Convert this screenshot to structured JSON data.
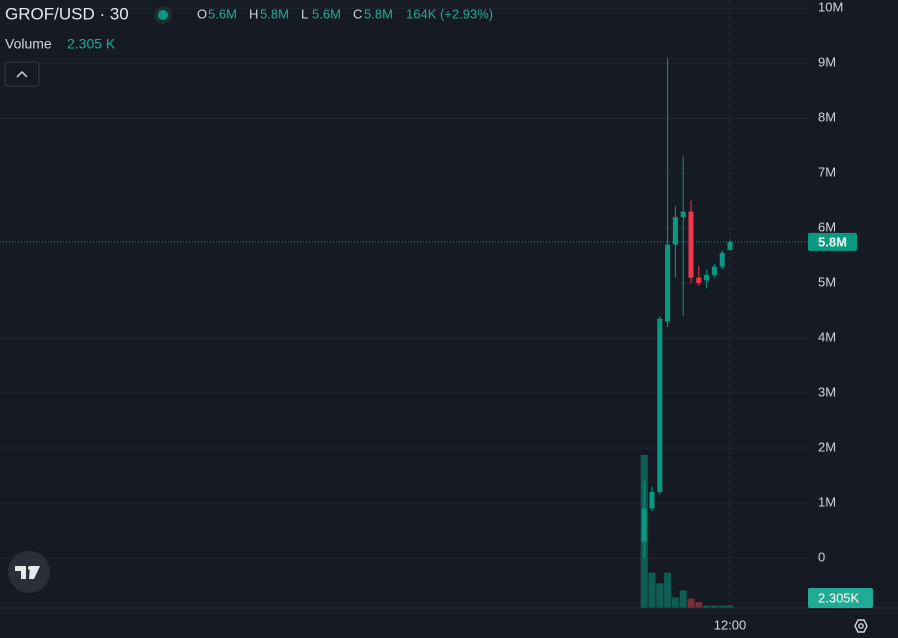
{
  "chart_data": {
    "type": "candlestick",
    "legend": {
      "symbol": "GROF/USD · 30",
      "ohlc": [
        {
          "key": "O",
          "value": "5.6M"
        },
        {
          "key": "H",
          "value": "5.8M"
        },
        {
          "key": "L",
          "value": "5.6M"
        },
        {
          "key": "C",
          "value": "5.8M"
        }
      ],
      "change": "164K (+2.93%)",
      "volume_title": "Volume",
      "volume_value": "2.305 K"
    },
    "categories": [
      null,
      null,
      null,
      null,
      null,
      null,
      null,
      null,
      null,
      null,
      null,
      "12:00"
    ],
    "open": [
      0.3,
      0.9,
      1.2,
      4.3,
      5.7,
      6.2,
      6.3,
      5.1,
      5.05,
      5.15,
      5.3,
      5.6
    ],
    "high": [
      1.4,
      1.3,
      4.4,
      9.1,
      6.4,
      7.3,
      6.5,
      5.3,
      5.25,
      5.35,
      5.6,
      5.8
    ],
    "low": [
      0.0,
      0.85,
      1.15,
      4.2,
      5.1,
      4.4,
      5.0,
      4.95,
      4.9,
      5.1,
      5.25,
      5.6
    ],
    "close": [
      0.9,
      1.2,
      4.35,
      5.7,
      6.2,
      6.3,
      5.1,
      5.0,
      5.15,
      5.3,
      5.55,
      5.75
    ],
    "volume": [
      130,
      30,
      21,
      30,
      9,
      15,
      8,
      5,
      2,
      2,
      2,
      2.305
    ],
    "up_color": "#089981",
    "down_color": "#f23645",
    "volume_up_color": "#0e5e56",
    "volume_down_color": "#7a2e3a",
    "ylim": [
      -0.91,
      10.15
    ],
    "yticks": [
      0,
      {
        "value": 1,
        "label": "1M"
      },
      {
        "value": 2,
        "label": "2M"
      },
      {
        "value": 3,
        "label": "3M"
      },
      {
        "value": 4,
        "label": "4M"
      },
      {
        "value": 5,
        "label": "5M"
      },
      {
        "value": 6,
        "label": "6M"
      },
      {
        "value": 7,
        "label": "7M"
      },
      {
        "value": 8,
        "label": "8M"
      },
      {
        "value": 9,
        "label": "9M"
      },
      {
        "value": 10,
        "label": "10M"
      }
    ],
    "grid": true,
    "last_price_label": "5.8M",
    "last_volume_label": "2.305K"
  }
}
